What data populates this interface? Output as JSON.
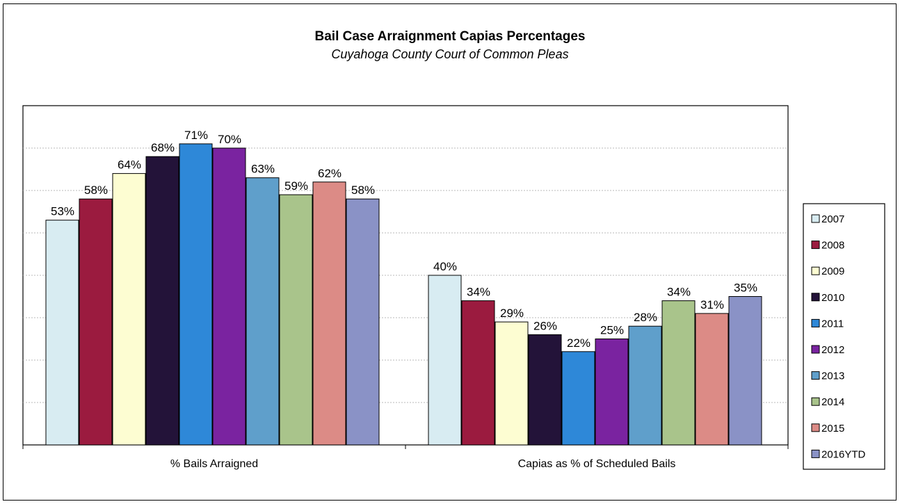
{
  "chart_data": {
    "type": "bar",
    "title": "Bail Case  Arraignment Capias Percentages",
    "subtitle": "Cuyahoga County Court of Common Pleas",
    "categories": [
      "% Bails Arraigned",
      "Capias as % of Scheduled Bails"
    ],
    "series": [
      {
        "name": "2007",
        "color": "#d8ecf2",
        "values": [
          53,
          40
        ]
      },
      {
        "name": "2008",
        "color": "#9b1b3f",
        "values": [
          58,
          34
        ]
      },
      {
        "name": "2009",
        "color": "#fdfdd2",
        "values": [
          64,
          29
        ]
      },
      {
        "name": "2010",
        "color": "#231339",
        "values": [
          68,
          26
        ]
      },
      {
        "name": "2011",
        "color": "#2e88d8",
        "values": [
          71,
          22
        ]
      },
      {
        "name": "2012",
        "color": "#7a23a0",
        "values": [
          70,
          25
        ]
      },
      {
        "name": "2013",
        "color": "#5f9fcb",
        "values": [
          63,
          28
        ]
      },
      {
        "name": "2014",
        "color": "#a9c48b",
        "values": [
          59,
          34
        ]
      },
      {
        "name": "2015",
        "color": "#dc8b86",
        "values": [
          62,
          31
        ]
      },
      {
        "name": "2016YTD",
        "color": "#8a92c6",
        "values": [
          58,
          35
        ]
      }
    ],
    "data_labels": [
      [
        "53%",
        "58%",
        "64%",
        "68%",
        "71%",
        "70%",
        "63%",
        "59%",
        "62%",
        "58%"
      ],
      [
        "40%",
        "34%",
        "29%",
        "26%",
        "22%",
        "25%",
        "28%",
        "34%",
        "31%",
        "35%"
      ]
    ],
    "ylim": [
      0,
      80
    ],
    "grid": true,
    "legend_position": "right"
  }
}
